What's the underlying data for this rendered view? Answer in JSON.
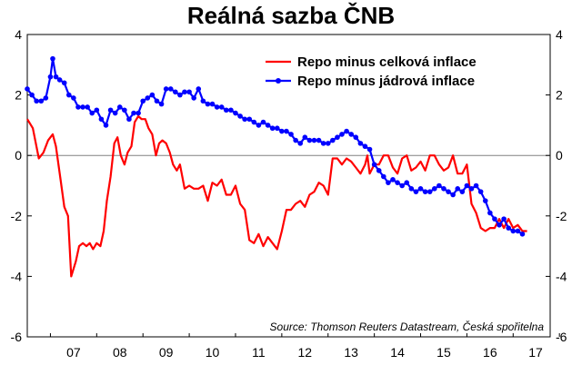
{
  "chart_data": {
    "type": "line",
    "title": "Reálná sazba ČNB",
    "source": "Source: Thomson Reuters Datastream, Česká spořitelna",
    "ylim": [
      -6,
      4
    ],
    "yticks": [
      "4",
      "2",
      "0",
      "-2",
      "-4",
      "-6"
    ],
    "yticks_right": [
      "4",
      "2",
      "0",
      "-2",
      "-4",
      "-6"
    ],
    "xlim": [
      2006.5,
      2017.8
    ],
    "xticks": [
      "07",
      "08",
      "09",
      "10",
      "11",
      "12",
      "13",
      "14",
      "15",
      "16",
      "17"
    ],
    "grid": false,
    "legend_position": "top-right",
    "colors": {
      "celkova": "#ff0000",
      "jadrova": "#0000ff"
    },
    "series": [
      {
        "name": "Repo minus celková inflace",
        "marker": "none",
        "x": [
          2006.5,
          2006.62,
          2006.75,
          2006.85,
          2006.95,
          2007.05,
          2007.12,
          2007.22,
          2007.3,
          2007.38,
          2007.45,
          2007.55,
          2007.62,
          2007.7,
          2007.78,
          2007.85,
          2007.92,
          2008.0,
          2008.08,
          2008.15,
          2008.22,
          2008.3,
          2008.38,
          2008.45,
          2008.52,
          2008.6,
          2008.67,
          2008.75,
          2008.82,
          2008.9,
          2008.97,
          2009.05,
          2009.12,
          2009.2,
          2009.28,
          2009.35,
          2009.42,
          2009.5,
          2009.58,
          2009.65,
          2009.73,
          2009.8,
          2009.9,
          2010.0,
          2010.1,
          2010.2,
          2010.3,
          2010.4,
          2010.5,
          2010.6,
          2010.7,
          2010.8,
          2010.9,
          2011.0,
          2011.1,
          2011.2,
          2011.3,
          2011.4,
          2011.5,
          2011.6,
          2011.7,
          2011.8,
          2011.9,
          2012.0,
          2012.1,
          2012.2,
          2012.3,
          2012.4,
          2012.5,
          2012.6,
          2012.7,
          2012.8,
          2012.9,
          2013.0,
          2013.1,
          2013.2,
          2013.3,
          2013.4,
          2013.5,
          2013.6,
          2013.7,
          2013.8,
          2013.85,
          2013.9,
          2014.0,
          2014.1,
          2014.2,
          2014.3,
          2014.4,
          2014.5,
          2014.6,
          2014.7,
          2014.8,
          2014.9,
          2015.0,
          2015.1,
          2015.2,
          2015.3,
          2015.4,
          2015.5,
          2015.6,
          2015.7,
          2015.8,
          2015.9,
          2016.0,
          2016.1,
          2016.2,
          2016.3,
          2016.4,
          2016.5,
          2016.6,
          2016.7,
          2016.8,
          2016.9,
          2017.0,
          2017.1,
          2017.15,
          2017.2,
          2017.3
        ],
        "y": [
          1.2,
          0.9,
          -0.1,
          0.1,
          0.5,
          0.7,
          0.3,
          -0.8,
          -1.7,
          -2.0,
          -4.0,
          -3.5,
          -3.0,
          -2.9,
          -3.0,
          -2.9,
          -3.1,
          -2.9,
          -3.0,
          -2.5,
          -1.5,
          -0.7,
          0.4,
          0.6,
          0.0,
          -0.3,
          0.1,
          0.3,
          1.1,
          1.3,
          1.2,
          1.2,
          0.9,
          0.7,
          0.0,
          0.4,
          0.5,
          0.4,
          0.1,
          -0.3,
          -0.5,
          -0.3,
          -1.1,
          -1.0,
          -1.1,
          -1.1,
          -1.0,
          -1.5,
          -0.9,
          -1.0,
          -0.8,
          -1.3,
          -1.3,
          -1.0,
          -1.6,
          -1.8,
          -2.8,
          -2.9,
          -2.6,
          -3.0,
          -2.7,
          -2.9,
          -3.1,
          -2.5,
          -1.8,
          -1.8,
          -1.6,
          -1.5,
          -1.7,
          -1.3,
          -1.2,
          -0.9,
          -1.0,
          -1.3,
          -0.1,
          -0.1,
          -0.3,
          -0.1,
          -0.2,
          -0.4,
          -0.6,
          -0.3,
          0.0,
          -0.6,
          -0.3,
          -0.3,
          0.0,
          0.0,
          -0.4,
          -0.6,
          -0.1,
          0.0,
          -0.5,
          -0.4,
          -0.2,
          -0.5,
          0.0,
          0.0,
          -0.3,
          -0.5,
          -0.4,
          0.0,
          -0.6,
          -0.6,
          -0.3,
          -1.6,
          -1.9,
          -2.4,
          -2.5,
          -2.4,
          -2.4,
          -2.1,
          -2.4,
          -2.1,
          -2.4,
          -2.3,
          -2.4,
          -2.5,
          -2.5
        ]
      },
      {
        "name": "Repo mínus jádrová inflace",
        "marker": "circle",
        "x": [
          2006.5,
          2006.6,
          2006.7,
          2006.8,
          2006.9,
          2007.0,
          2007.05,
          2007.12,
          2007.2,
          2007.3,
          2007.4,
          2007.5,
          2007.6,
          2007.7,
          2007.8,
          2007.9,
          2008.0,
          2008.1,
          2008.2,
          2008.3,
          2008.4,
          2008.5,
          2008.6,
          2008.7,
          2008.8,
          2008.9,
          2009.0,
          2009.1,
          2009.2,
          2009.3,
          2009.4,
          2009.5,
          2009.6,
          2009.7,
          2009.8,
          2009.9,
          2010.0,
          2010.1,
          2010.2,
          2010.3,
          2010.4,
          2010.5,
          2010.6,
          2010.7,
          2010.8,
          2010.9,
          2011.0,
          2011.1,
          2011.2,
          2011.3,
          2011.4,
          2011.5,
          2011.6,
          2011.7,
          2011.8,
          2011.9,
          2012.0,
          2012.1,
          2012.2,
          2012.3,
          2012.4,
          2012.5,
          2012.6,
          2012.7,
          2012.8,
          2012.9,
          2013.0,
          2013.1,
          2013.2,
          2013.3,
          2013.4,
          2013.5,
          2013.6,
          2013.7,
          2013.8,
          2013.9,
          2014.0,
          2014.1,
          2014.2,
          2014.3,
          2014.4,
          2014.5,
          2014.6,
          2014.7,
          2014.8,
          2014.9,
          2015.0,
          2015.1,
          2015.2,
          2015.3,
          2015.4,
          2015.5,
          2015.6,
          2015.7,
          2015.8,
          2015.9,
          2016.0,
          2016.1,
          2016.2,
          2016.3,
          2016.4,
          2016.5,
          2016.6,
          2016.7,
          2016.8,
          2016.9,
          2017.0,
          2017.1,
          2017.2
        ],
        "y": [
          2.2,
          2.0,
          1.8,
          1.8,
          1.9,
          2.6,
          3.2,
          2.6,
          2.5,
          2.4,
          2.0,
          1.9,
          1.6,
          1.6,
          1.6,
          1.4,
          1.5,
          1.2,
          1.0,
          1.5,
          1.4,
          1.6,
          1.5,
          1.2,
          1.4,
          1.4,
          1.8,
          1.9,
          2.0,
          1.8,
          1.7,
          2.2,
          2.2,
          2.1,
          2.0,
          2.1,
          2.1,
          1.9,
          2.2,
          1.8,
          1.7,
          1.7,
          1.6,
          1.6,
          1.5,
          1.5,
          1.4,
          1.3,
          1.2,
          1.2,
          1.1,
          1.0,
          1.1,
          1.0,
          0.9,
          0.9,
          0.8,
          0.8,
          0.7,
          0.5,
          0.4,
          0.6,
          0.5,
          0.5,
          0.5,
          0.4,
          0.4,
          0.5,
          0.6,
          0.7,
          0.8,
          0.7,
          0.6,
          0.4,
          0.3,
          0.2,
          -0.3,
          -0.5,
          -0.7,
          -0.9,
          -0.8,
          -0.9,
          -1.0,
          -0.9,
          -1.1,
          -1.2,
          -1.1,
          -1.2,
          -1.2,
          -1.1,
          -1.0,
          -1.1,
          -1.2,
          -1.3,
          -1.1,
          -1.2,
          -1.0,
          -1.1,
          -1.0,
          -1.2,
          -1.5,
          -1.9,
          -2.1,
          -2.3,
          -2.1,
          -2.4,
          -2.5,
          -2.5,
          -2.6
        ]
      }
    ]
  }
}
